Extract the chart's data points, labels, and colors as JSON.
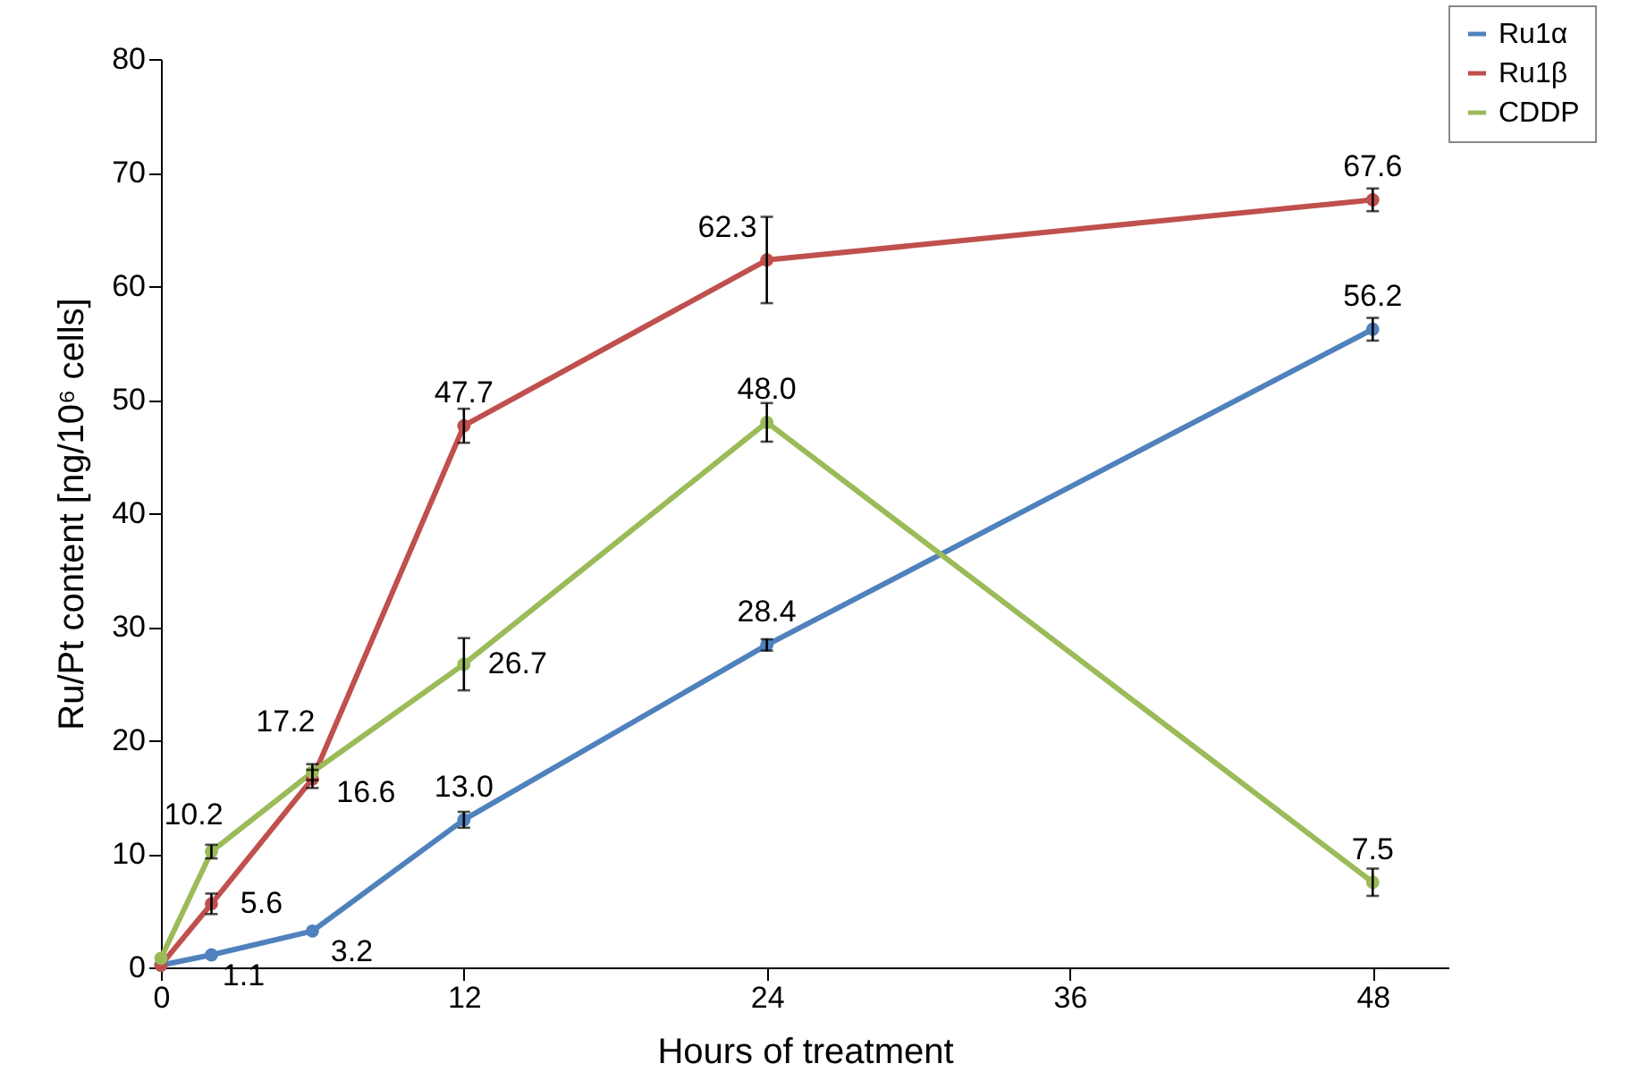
{
  "chart_data": {
    "type": "line",
    "xlabel": "Hours of treatment",
    "ylabel": "Ru/Pt content [ng/10⁶ cells]",
    "x": [
      0,
      2,
      6,
      12,
      24,
      48
    ],
    "series": [
      {
        "name": "Ru1α",
        "color": "#4f81bd",
        "values": [
          0.2,
          1.1,
          3.2,
          13.0,
          28.4,
          56.2
        ],
        "errors": [
          null,
          null,
          null,
          0.7,
          0.5,
          1.0
        ],
        "value_labels": [
          null,
          "1.1",
          "3.2",
          "13.0",
          "28.4",
          "56.2"
        ]
      },
      {
        "name": "Ru1β",
        "color": "#c0504d",
        "values": [
          0.2,
          5.6,
          16.6,
          47.7,
          62.3,
          67.6
        ],
        "errors": [
          null,
          0.9,
          0.8,
          1.5,
          3.8,
          1.0
        ],
        "value_labels": [
          null,
          "5.6",
          "16.6",
          "47.7",
          "62.3",
          "67.6"
        ]
      },
      {
        "name": "CDDP",
        "color": "#9bbb59",
        "values": [
          0.8,
          10.2,
          17.2,
          26.7,
          48.0,
          7.5
        ],
        "errors": [
          null,
          0.6,
          0.7,
          2.3,
          1.7,
          1.2
        ],
        "value_labels": [
          null,
          "10.2",
          "17.2",
          "26.7",
          "48.0",
          "7.5"
        ]
      }
    ],
    "xlim": [
      0,
      51
    ],
    "xticks": [
      0,
      12,
      24,
      36,
      48
    ],
    "ylim": [
      0,
      80
    ],
    "yticks": [
      0,
      10,
      20,
      30,
      40,
      50,
      60,
      70,
      80
    ],
    "grid": false,
    "legend": "top right",
    "marker": "circle",
    "line_style": "solid"
  }
}
